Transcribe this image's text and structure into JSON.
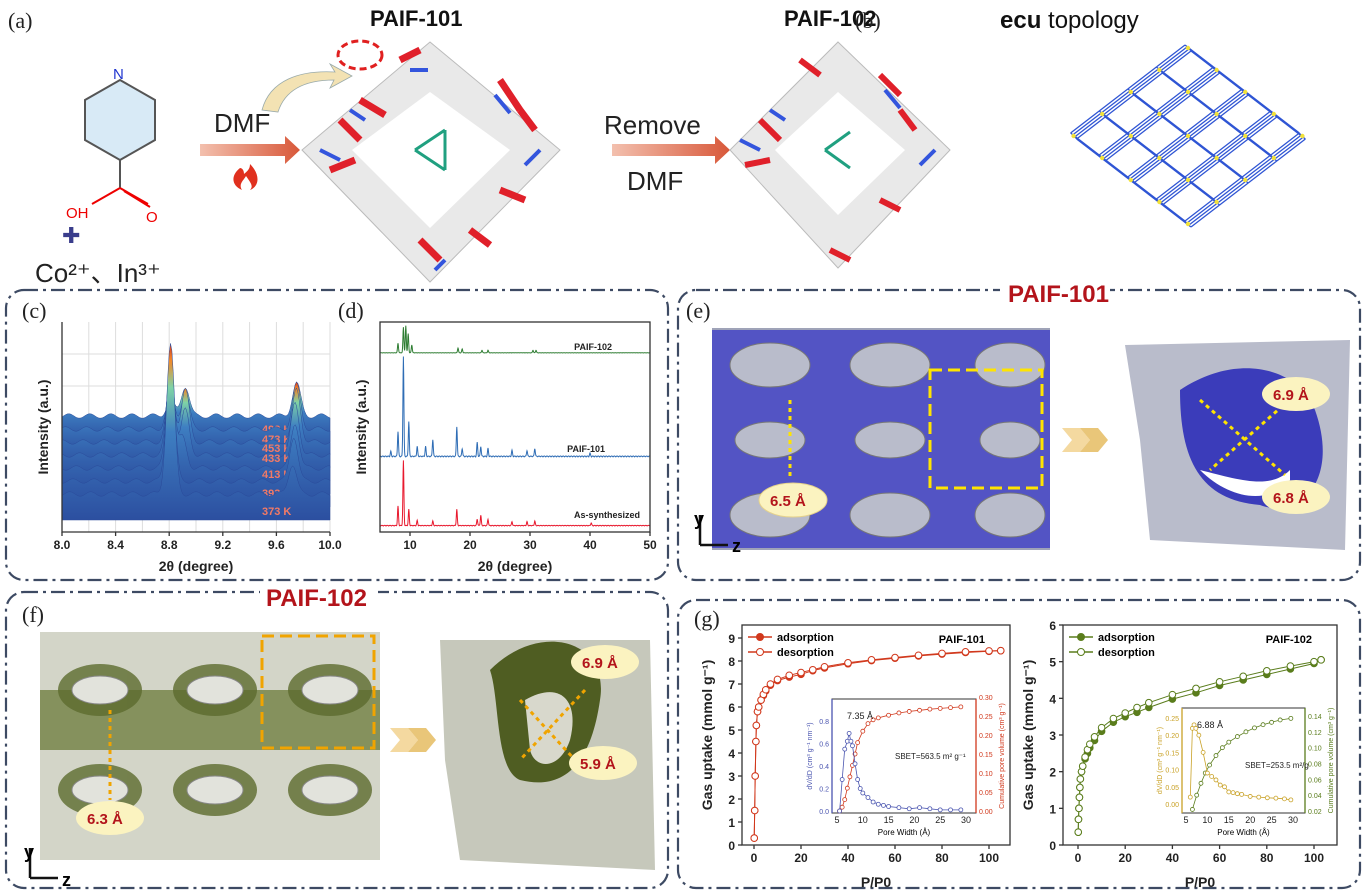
{
  "panels": {
    "a": {
      "label": "(a)",
      "title_101": "PAIF-101",
      "title_102": "PAIF-102",
      "oh": "OH",
      "o": "O",
      "n": "N",
      "plus": "✚",
      "metals": "Co²⁺、In³⁺",
      "dmf": "DMF",
      "remove": "Remove",
      "dmf2": "DMF"
    },
    "b": {
      "label": "(b)",
      "title_bold": "ecu",
      "title_rest": " topology"
    },
    "c": {
      "label": "(c)"
    },
    "d": {
      "label": "(d)"
    },
    "e": {
      "label": "(e)",
      "title": "PAIF-101",
      "m1": "6.5 Å",
      "m2": "6.9 Å",
      "m3": "6.8 Å",
      "axis_y": "y",
      "axis_z": "z"
    },
    "f": {
      "label": "(f)",
      "title": "PAIF-102",
      "m1": "6.3 Å",
      "m2": "6.9 Å",
      "m3": "5.9 Å",
      "axis_y": "y",
      "axis_z": "z"
    },
    "g": {
      "label": "(g)"
    }
  },
  "colors": {
    "accent_red": "#b3141b",
    "paif101": "#d1381c",
    "paif102": "#5a7d1c",
    "psd101": "#4a55b0",
    "psd102": "#c9a227",
    "frame": "#3d4a63"
  },
  "chart_data": [
    {
      "id": "c",
      "type": "area",
      "xlabel": "2θ (degree)",
      "ylabel": "Intensity (a.u.)",
      "xlim": [
        8.0,
        10.0
      ],
      "xticks": [
        "8.0",
        "8.4",
        "8.8",
        "9.2",
        "9.6",
        "10.0"
      ],
      "series": [
        {
          "name": "493 K",
          "peaks": [
            [
              8.81,
              0.1
            ],
            [
              8.92,
              0.2
            ],
            [
              9.75,
              0.22
            ]
          ]
        },
        {
          "name": "473 K",
          "peaks": [
            [
              8.81,
              0.25
            ],
            [
              8.92,
              0.25
            ],
            [
              9.75,
              0.3
            ]
          ]
        },
        {
          "name": "453 K",
          "peaks": [
            [
              8.81,
              0.4
            ],
            [
              8.92,
              0.35
            ],
            [
              9.75,
              0.35
            ]
          ]
        },
        {
          "name": "433 K",
          "peaks": [
            [
              8.81,
              0.55
            ],
            [
              8.92,
              0.3
            ],
            [
              9.74,
              0.35
            ]
          ]
        },
        {
          "name": "413 K",
          "peaks": [
            [
              8.81,
              0.7
            ],
            [
              8.9,
              0.2
            ],
            [
              9.74,
              0.3
            ]
          ]
        },
        {
          "name": "393 K",
          "peaks": [
            [
              8.81,
              0.85
            ],
            [
              9.73,
              0.3
            ]
          ]
        },
        {
          "name": "373 K",
          "peaks": [
            [
              8.81,
              1.0
            ],
            [
              9.72,
              0.2
            ]
          ]
        }
      ]
    },
    {
      "id": "d",
      "type": "line",
      "xlabel": "2θ (degree)",
      "ylabel": "Intensity (a.u.)",
      "xlim": [
        5,
        50
      ],
      "xticks": [
        "10",
        "20",
        "30",
        "40",
        "50"
      ],
      "series": [
        {
          "name": "PAIF-102",
          "color": "#2e7d32",
          "peaks": [
            [
              8.0,
              0.3
            ],
            [
              8.9,
              0.8
            ],
            [
              9.3,
              0.85
            ],
            [
              9.7,
              0.6
            ],
            [
              10.3,
              0.25
            ],
            [
              18,
              0.15
            ],
            [
              18.7,
              0.12
            ],
            [
              22,
              0.08
            ],
            [
              23,
              0.08
            ],
            [
              30.5,
              0.08
            ],
            [
              31,
              0.08
            ]
          ]
        },
        {
          "name": "PAIF-101",
          "color": "#2f6db5",
          "peaks": [
            [
              6.8,
              0.05
            ],
            [
              8.0,
              0.25
            ],
            [
              8.9,
              1.0
            ],
            [
              9.8,
              0.35
            ],
            [
              11.2,
              0.1
            ],
            [
              12.6,
              0.1
            ],
            [
              13.8,
              0.17
            ],
            [
              17.8,
              0.3
            ],
            [
              18.7,
              0.08
            ],
            [
              21.2,
              0.14
            ],
            [
              21.8,
              0.1
            ],
            [
              23,
              0.08
            ],
            [
              27,
              0.06
            ],
            [
              29.5,
              0.06
            ],
            [
              30.8,
              0.08
            ],
            [
              40,
              0.03
            ]
          ]
        },
        {
          "name": "As-synthesized",
          "color": "#e8192e",
          "peaks": [
            [
              8.0,
              0.3
            ],
            [
              8.9,
              1.0
            ],
            [
              9.8,
              0.25
            ],
            [
              11.2,
              0.08
            ],
            [
              13.8,
              0.07
            ],
            [
              17.8,
              0.25
            ],
            [
              21.2,
              0.1
            ],
            [
              21.8,
              0.16
            ],
            [
              23,
              0.1
            ],
            [
              27,
              0.06
            ],
            [
              29.5,
              0.06
            ],
            [
              30.8,
              0.07
            ],
            [
              40.2,
              0.04
            ]
          ]
        }
      ]
    },
    {
      "id": "g1",
      "type": "scatter",
      "title": "PAIF-101",
      "xlabel": "P/P0",
      "ylabel": "Gas uptake (mmol g⁻¹)",
      "xlim": [
        -5,
        110
      ],
      "ylim": [
        0,
        9.5
      ],
      "xticks": [
        "0",
        "20",
        "40",
        "60",
        "80",
        "100"
      ],
      "yticks": [
        "0",
        "1",
        "2",
        "3",
        "4",
        "5",
        "6",
        "7",
        "8",
        "9"
      ],
      "legend": [
        "adsorption",
        "desorption"
      ],
      "legend_placement": "top-left",
      "x": [
        0.1,
        0.3,
        0.5,
        0.8,
        1,
        1.5,
        2,
        3,
        4,
        5,
        7,
        10,
        15,
        20,
        25,
        30,
        40,
        50,
        60,
        70,
        80,
        90,
        100,
        105
      ],
      "adsorption": [
        0.3,
        1.5,
        3,
        4.5,
        5.2,
        5.8,
        6.0,
        6.3,
        6.5,
        6.7,
        6.95,
        7.15,
        7.3,
        7.42,
        7.58,
        7.7,
        7.88,
        8.02,
        8.12,
        8.22,
        8.3,
        8.37,
        8.42,
        8.45
      ],
      "desorption": [
        0.3,
        1.5,
        3,
        4.5,
        5.2,
        5.8,
        6.0,
        6.3,
        6.55,
        6.75,
        7.0,
        7.2,
        7.38,
        7.5,
        7.62,
        7.75,
        7.92,
        8.05,
        8.15,
        8.25,
        8.33,
        8.4,
        8.44,
        8.45
      ],
      "inset": {
        "xlabel": "Pore Width (Å)",
        "ylabel_left": "dV/dD (cm³ g⁻¹ nm⁻¹)",
        "ylabel_right": "Cumulative pore volume (cm³ g⁻¹)",
        "peak_label": "7.35 Å",
        "sbet": "SBET=563.5 m² g⁻¹",
        "xlim": [
          4,
          32
        ],
        "ylim_left": [
          -0.02,
          0.9
        ],
        "ylim_right": [
          0,
          0.3
        ],
        "xticks": [
          "5",
          "10",
          "15",
          "20",
          "25",
          "30"
        ],
        "yticks_left": [
          "0.0",
          "0.2",
          "0.4",
          "0.6",
          "0.8"
        ],
        "yticks_right": [
          "0.00",
          "0.05",
          "0.10",
          "0.15",
          "0.20",
          "0.25",
          "0.30"
        ],
        "psd_x": [
          5.5,
          6,
          6.5,
          7,
          7.35,
          7.7,
          8,
          8.5,
          9,
          9.5,
          10,
          11,
          12,
          13,
          14,
          15,
          17,
          19,
          21,
          23,
          25,
          27,
          29
        ],
        "psd_y": [
          0.0,
          0.28,
          0.55,
          0.62,
          0.69,
          0.62,
          0.58,
          0.42,
          0.28,
          0.2,
          0.16,
          0.12,
          0.08,
          0.06,
          0.05,
          0.04,
          0.03,
          0.02,
          0.03,
          0.02,
          0.01,
          0.01,
          0.01
        ],
        "cum_x": [
          5.5,
          6,
          6.5,
          7,
          7.5,
          8,
          8.5,
          9,
          10,
          11,
          12,
          13,
          15,
          17,
          19,
          21,
          23,
          25,
          27,
          29
        ],
        "cum_y": [
          0.0,
          0.01,
          0.03,
          0.06,
          0.09,
          0.12,
          0.15,
          0.18,
          0.21,
          0.23,
          0.24,
          0.245,
          0.252,
          0.258,
          0.262,
          0.265,
          0.268,
          0.27,
          0.272,
          0.274
        ]
      }
    },
    {
      "id": "g2",
      "type": "scatter",
      "title": "PAIF-102",
      "xlabel": "P/P0",
      "ylabel": "Gas uptake (mmol g⁻¹)",
      "xlim": [
        -5,
        110
      ],
      "ylim": [
        0,
        6
      ],
      "xticks": [
        "0",
        "20",
        "40",
        "60",
        "80",
        "100"
      ],
      "yticks": [
        "0",
        "1",
        "2",
        "3",
        "4",
        "5",
        "6"
      ],
      "legend": [
        "adsorption",
        "desorption"
      ],
      "legend_placement": "top-left",
      "x": [
        0.1,
        0.2,
        0.4,
        0.6,
        0.8,
        1,
        1.5,
        2,
        3,
        4,
        5,
        7,
        10,
        15,
        20,
        25,
        30,
        40,
        50,
        60,
        70,
        80,
        90,
        100,
        103
      ],
      "adsorption": [
        0.35,
        0.7,
        1.0,
        1.3,
        1.57,
        1.8,
        2.0,
        2.15,
        2.35,
        2.5,
        2.65,
        2.85,
        3.1,
        3.35,
        3.5,
        3.62,
        3.75,
        3.98,
        4.15,
        4.35,
        4.5,
        4.65,
        4.8,
        4.95,
        5.05
      ],
      "desorption": [
        0.35,
        0.7,
        1.0,
        1.3,
        1.57,
        1.8,
        2.0,
        2.15,
        2.4,
        2.6,
        2.75,
        2.95,
        3.2,
        3.45,
        3.6,
        3.75,
        3.88,
        4.1,
        4.27,
        4.45,
        4.6,
        4.75,
        4.88,
        5.0,
        5.05
      ],
      "inset": {
        "xlabel": "Pore Width (Å)",
        "ylabel_left": "dV/dD (cm³ g⁻¹ nm⁻¹)",
        "ylabel_right": "Cumulative pore volume (cm³ g⁻¹)",
        "peak_label": "6.88 Å",
        "sbet": "SBET=253.5 m²/g",
        "xlim": [
          4,
          32
        ],
        "ylim_left": [
          -0.02,
          0.27
        ],
        "ylim_right": [
          0.02,
          0.15
        ],
        "xticks": [
          "5",
          "10",
          "15",
          "20",
          "25",
          "30"
        ],
        "yticks_left": [
          "0.00",
          "0.05",
          "0.10",
          "0.15",
          "0.20",
          "0.25"
        ],
        "yticks_right": [
          "0.02",
          "0.04",
          "0.06",
          "0.08",
          "0.10",
          "0.12",
          "0.14"
        ],
        "psd_x": [
          6,
          6.5,
          6.88,
          7.3,
          8,
          9,
          10,
          11,
          12,
          13,
          14,
          15,
          16,
          17,
          18,
          20,
          22,
          24,
          26,
          28,
          29.5
        ],
        "psd_y": [
          0.02,
          0.22,
          0.23,
          0.22,
          0.2,
          0.15,
          0.09,
          0.08,
          0.07,
          0.055,
          0.05,
          0.035,
          0.033,
          0.03,
          0.028,
          0.022,
          0.02,
          0.018,
          0.017,
          0.015,
          0.012
        ],
        "cum_x": [
          6.5,
          7.5,
          8.5,
          9.5,
          10.5,
          12,
          13.5,
          15,
          17,
          19,
          21,
          23,
          25,
          27,
          29.5
        ],
        "cum_y": [
          0.022,
          0.04,
          0.055,
          0.068,
          0.078,
          0.09,
          0.1,
          0.107,
          0.114,
          0.12,
          0.125,
          0.129,
          0.132,
          0.135,
          0.137
        ]
      }
    }
  ]
}
